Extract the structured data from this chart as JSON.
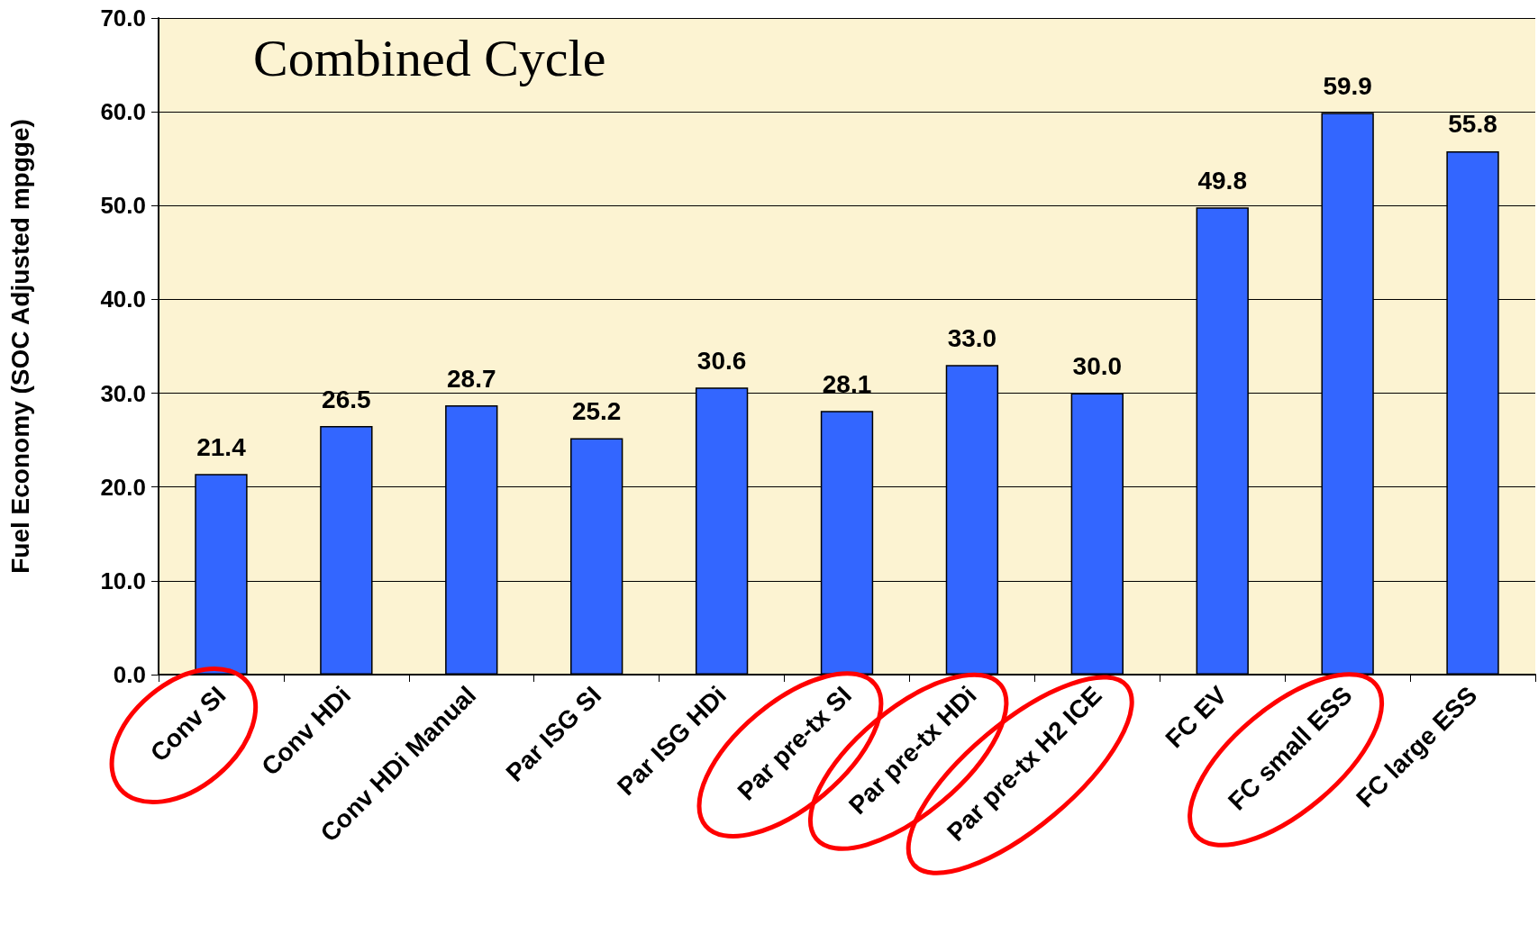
{
  "chart_data": {
    "type": "bar",
    "title": "Combined Cycle",
    "ylabel": "Fuel Economy (SOC Adjusted mpgge)",
    "categories": [
      "Conv SI",
      "Conv HDi",
      "Conv HDi Manual",
      "Par ISG SI",
      "Par ISG HDi",
      "Par pre-tx SI",
      "Par pre-tx HDi",
      "Par pre-tx H2 ICE",
      "FC EV",
      "FC small ESS",
      "FC large ESS"
    ],
    "values": [
      21.4,
      26.5,
      28.7,
      25.2,
      30.6,
      28.1,
      33.0,
      30.0,
      49.8,
      59.9,
      55.8
    ],
    "value_labels": [
      "21.4",
      "26.5",
      "28.7",
      "25.2",
      "30.6",
      "28.1",
      "33.0",
      "30.0",
      "49.8",
      "59.9",
      "55.8"
    ],
    "color": "#3366ff",
    "ylim": [
      0,
      70
    ],
    "yticks": [
      {
        "value": 0,
        "label": "0.0"
      },
      {
        "value": 10,
        "label": "10.0"
      },
      {
        "value": 20,
        "label": "20.0"
      },
      {
        "value": 30,
        "label": "30.0"
      },
      {
        "value": 40,
        "label": "40.0"
      },
      {
        "value": 50,
        "label": "50.0"
      },
      {
        "value": 60,
        "label": "60.0"
      },
      {
        "value": 70,
        "label": "70.0"
      }
    ],
    "grid": "y"
  }
}
